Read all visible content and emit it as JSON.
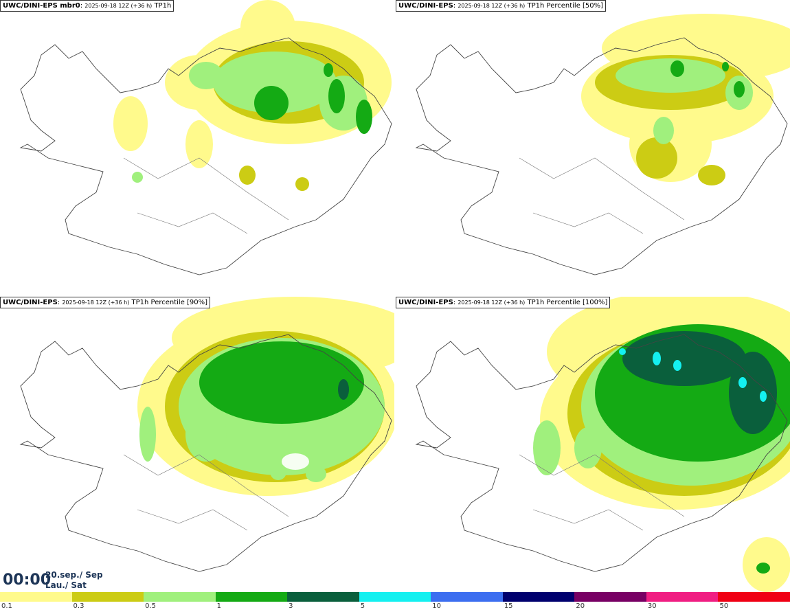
{
  "panels": [
    {
      "title_bold": "UWC/DINI-EPS mbr0",
      "title_run": "2025-09-18 12Z (+36 h)",
      "title_field": "TP1h"
    },
    {
      "title_bold": "UWC/DINI-EPS",
      "title_run": "2025-09-18 12Z (+36 h)",
      "title_field": "TP1h Percentile [50%]"
    },
    {
      "title_bold": "UWC/DINI-EPS",
      "title_run": "2025-09-18 12Z (+36 h)",
      "title_field": "TP1h Percentile [90%]"
    },
    {
      "title_bold": "UWC/DINI-EPS",
      "title_run": "2025-09-18 12Z (+36 h)",
      "title_field": "TP1h Percentile [100%]"
    }
  ],
  "valid_time": "00:00",
  "valid_date_line1": "20.sep./ Sep",
  "valid_date_line2": "Lau./ Sat",
  "legend": {
    "colors": [
      "#fffa8c",
      "#cccc14",
      "#a0f07d",
      "#14aa14",
      "#0a5f3c",
      "#14f0f0",
      "#3c6ef0",
      "#00006e",
      "#780064",
      "#f01e82",
      "#f00014"
    ],
    "labels": [
      "0.1",
      "0.3",
      "0.5",
      "1",
      "3",
      "5",
      "10",
      "15",
      "20",
      "30",
      "50"
    ]
  }
}
